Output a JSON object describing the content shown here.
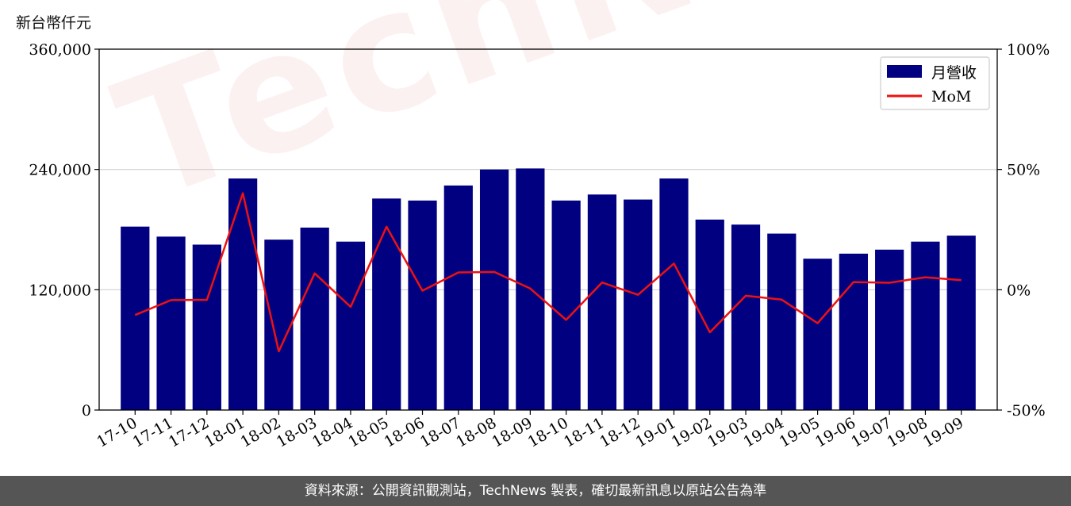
{
  "unit_label": "新台幣仟元",
  "footer_text": "資料來源：公開資訊觀測站，TechNews 製表，確切最新訊息以原站公告為準",
  "watermark_text": "TechNews",
  "colors": {
    "bar": "#000080",
    "line": "#ee1111",
    "grid": "#d0d0d0"
  },
  "chart_data": {
    "type": "bar",
    "categories": [
      "17-10",
      "17-11",
      "17-12",
      "18-01",
      "18-02",
      "18-03",
      "18-04",
      "18-05",
      "18-06",
      "18-07",
      "18-08",
      "18-09",
      "18-10",
      "18-11",
      "18-12",
      "19-01",
      "19-02",
      "19-03",
      "19-04",
      "19-05",
      "19-06",
      "19-07",
      "19-08",
      "19-09"
    ],
    "series": [
      {
        "name": "月營收",
        "type": "bar",
        "axis": "left",
        "values": [
          183000,
          173000,
          165000,
          231000,
          170000,
          182000,
          168000,
          211000,
          209000,
          224000,
          240000,
          241000,
          209000,
          215000,
          210000,
          231000,
          190000,
          185000,
          176000,
          151000,
          156000,
          160000,
          168000,
          174000
        ]
      },
      {
        "name": "MoM",
        "type": "line",
        "axis": "right",
        "values": [
          -10.5,
          -4.3,
          -4.2,
          40.1,
          -25.6,
          6.8,
          -7.1,
          26.2,
          -0.4,
          7.2,
          7.4,
          0.5,
          -12.5,
          3.0,
          -2.1,
          10.9,
          -17.7,
          -2.5,
          -4.1,
          -13.9,
          3.2,
          2.9,
          5.2,
          4.0
        ]
      }
    ],
    "y_left": {
      "ticks": [
        "0",
        "120,000",
        "240,000",
        "360,000"
      ],
      "ylim": [
        0,
        360000
      ]
    },
    "y_right": {
      "ticks": [
        "-50%",
        "0%",
        "50%",
        "100%"
      ],
      "ylim": [
        -50,
        100
      ]
    },
    "grid": "horizontal",
    "legend_position": "top-right"
  }
}
